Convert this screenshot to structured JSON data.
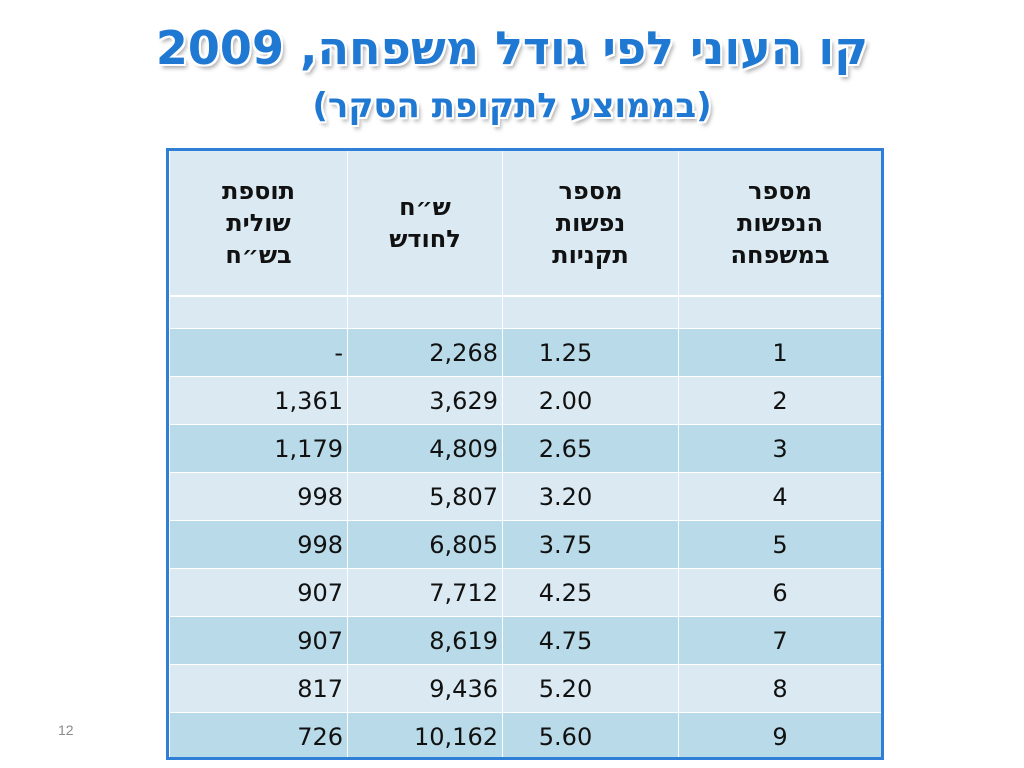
{
  "title": {
    "main": "קו העוני לפי גודל משפחה, 2009",
    "sub": "(בממוצע לתקופת הסקר)"
  },
  "slide_number": "12",
  "table": {
    "headers": {
      "family_size": [
        "מספר",
        "הנפשות",
        "במשפחה"
      ],
      "equivalent_persons": [
        "מספר",
        "נפשות",
        "תקניות"
      ],
      "nis_per_month": [
        "ש״ח",
        "לחודש"
      ],
      "marginal_addition": [
        "תוספת",
        "שולית",
        "בש״ח"
      ]
    },
    "rows": [
      {
        "family_size": "1",
        "equivalent_persons": "1.25",
        "nis_per_month": "2,268",
        "marginal_addition": "-"
      },
      {
        "family_size": "2",
        "equivalent_persons": "2.00",
        "nis_per_month": "3,629",
        "marginal_addition": "1,361"
      },
      {
        "family_size": "3",
        "equivalent_persons": "2.65",
        "nis_per_month": "4,809",
        "marginal_addition": "1,179"
      },
      {
        "family_size": "4",
        "equivalent_persons": "3.20",
        "nis_per_month": "5,807",
        "marginal_addition": "998"
      },
      {
        "family_size": "5",
        "equivalent_persons": "3.75",
        "nis_per_month": "6,805",
        "marginal_addition": "998"
      },
      {
        "family_size": "6",
        "equivalent_persons": "4.25",
        "nis_per_month": "7,712",
        "marginal_addition": "907"
      },
      {
        "family_size": "7",
        "equivalent_persons": "4.75",
        "nis_per_month": "8,619",
        "marginal_addition": "907"
      },
      {
        "family_size": "8",
        "equivalent_persons": "5.20",
        "nis_per_month": "9,436",
        "marginal_addition": "817"
      },
      {
        "family_size": "9",
        "equivalent_persons": "5.60",
        "nis_per_month": "10,162",
        "marginal_addition": "726"
      }
    ]
  }
}
